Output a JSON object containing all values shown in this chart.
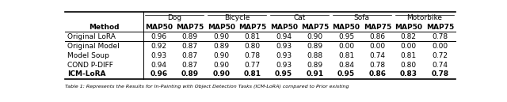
{
  "categories": [
    "Dog",
    "Bicycle",
    "Cat",
    "Sofa",
    "Motorbike"
  ],
  "subcols": [
    "MAP50",
    "MAP75"
  ],
  "methods_group1": [
    "Original LoRA"
  ],
  "methods_group2": [
    "Original Model",
    "Model Soup",
    "COND P-DIFF",
    "ICM-LoRA"
  ],
  "data_group1": [
    [
      0.96,
      0.89,
      0.9,
      0.81,
      0.94,
      0.9,
      0.95,
      0.86,
      0.82,
      0.78
    ]
  ],
  "data_group2": [
    [
      0.92,
      0.87,
      0.89,
      0.8,
      0.93,
      0.89,
      0.0,
      0.0,
      0.0,
      0.0
    ],
    [
      0.93,
      0.87,
      0.9,
      0.78,
      0.93,
      0.88,
      0.81,
      0.74,
      0.81,
      0.72
    ],
    [
      0.94,
      0.87,
      0.9,
      0.77,
      0.93,
      0.89,
      0.84,
      0.78,
      0.8,
      0.74
    ],
    [
      0.96,
      0.89,
      0.9,
      0.81,
      0.95,
      0.91,
      0.95,
      0.86,
      0.83,
      0.78
    ]
  ],
  "bold_row_group2": 3,
  "caption": "Table 1: Represents the Results for In-Painting with Object Detection Tasks (ICM-LoRA) compared to Prior existing",
  "bg_color": "#ffffff",
  "fontsize": 6.5,
  "header_fontsize": 6.5,
  "caption_fontsize": 4.5,
  "lw_thick": 1.2,
  "lw_thin": 0.7
}
